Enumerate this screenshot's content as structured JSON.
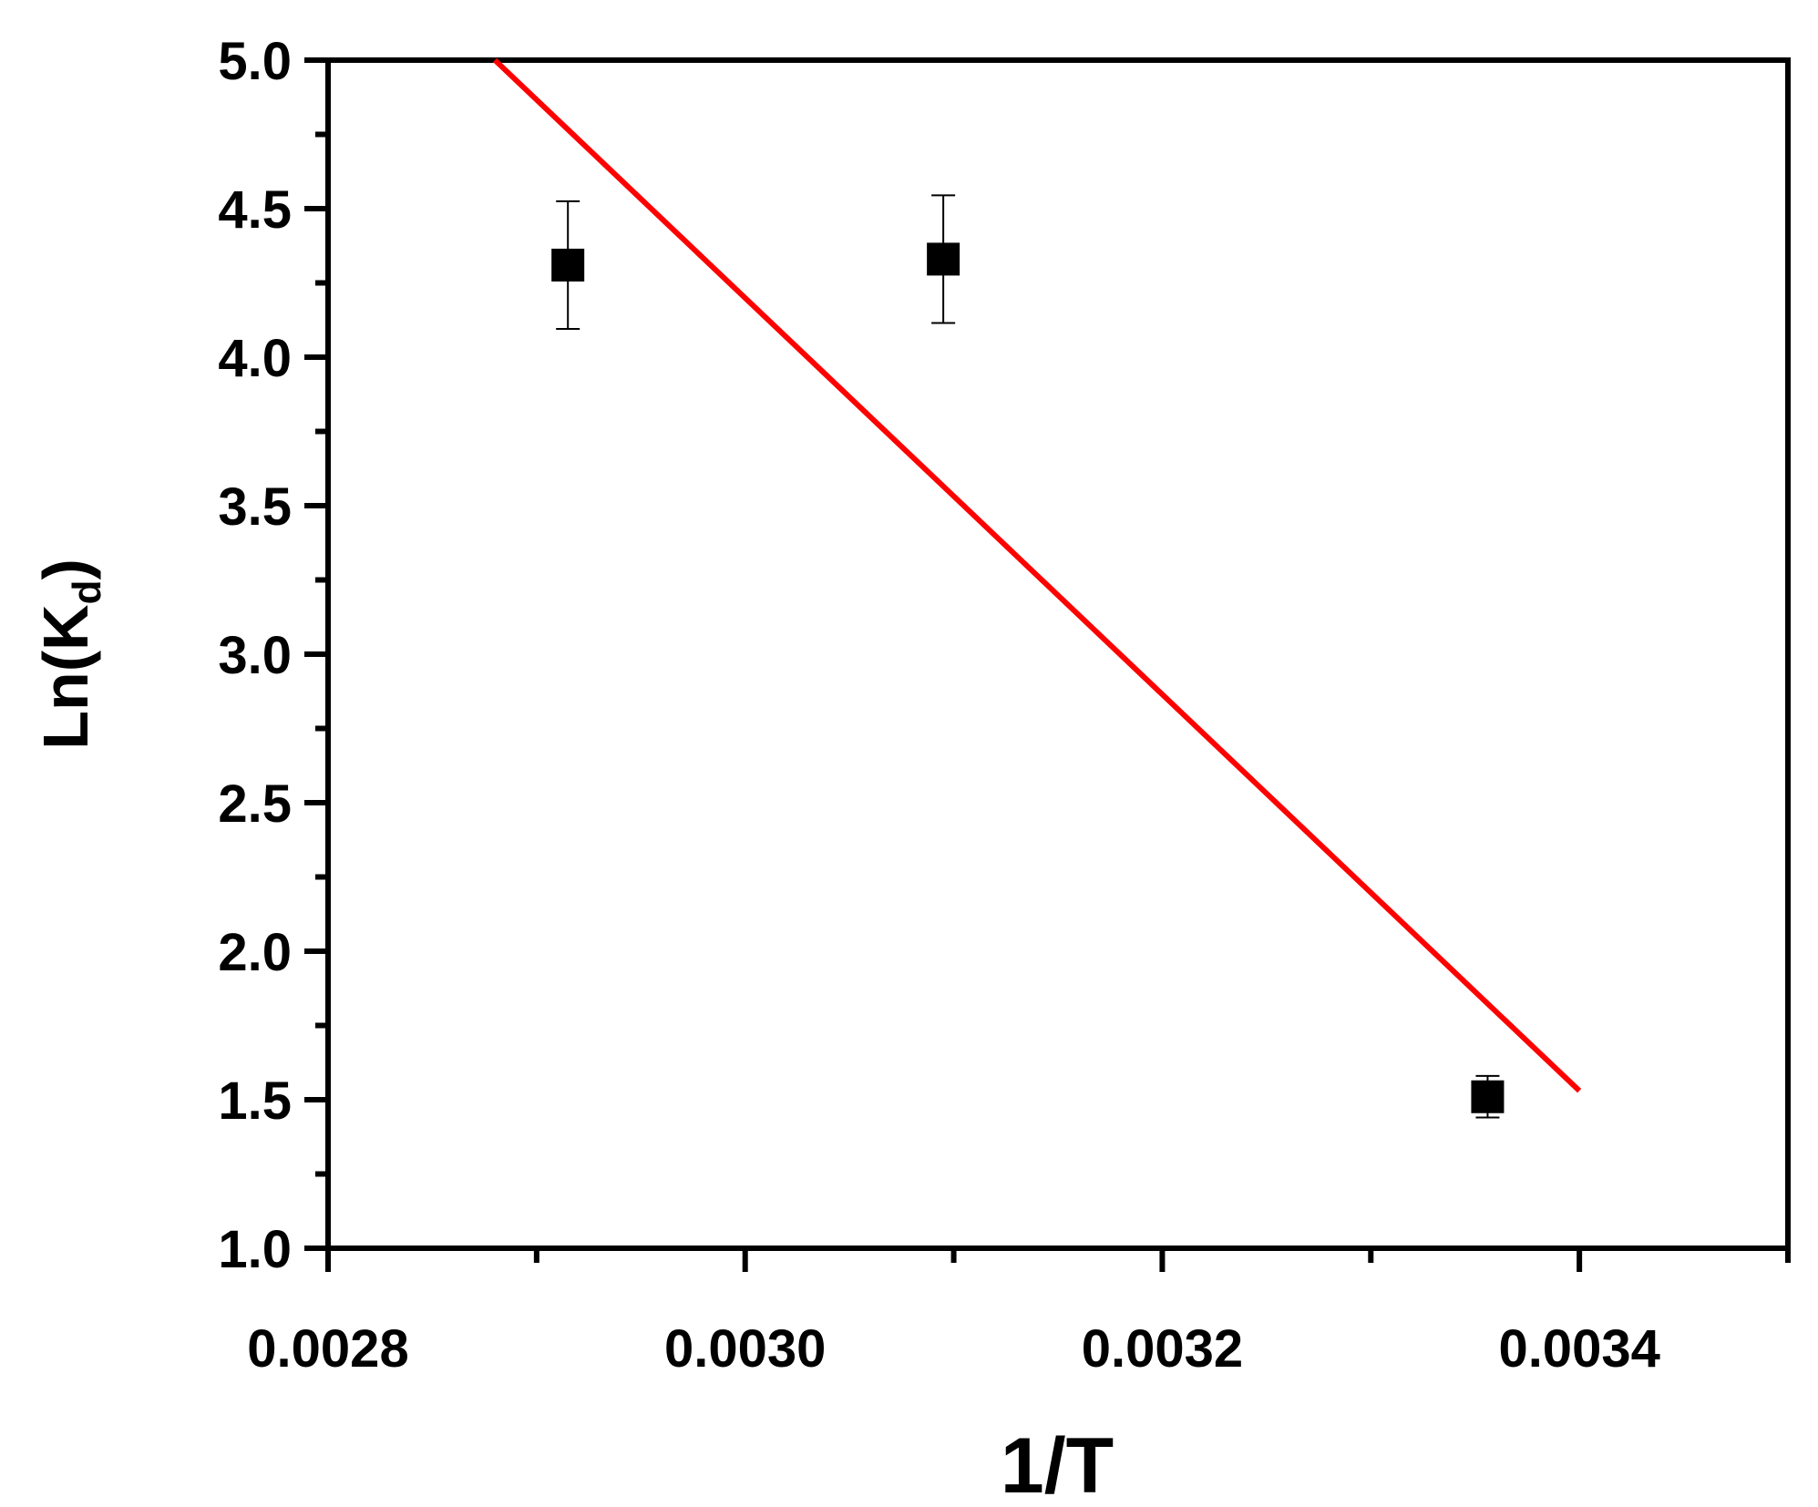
{
  "chart_data": {
    "type": "scatter",
    "title": "",
    "xlabel": "1/T",
    "ylabel_main": "Ln(K",
    "ylabel_sub": "d",
    "ylabel_close": ")",
    "xlim": [
      0.0028,
      0.0035
    ],
    "ylim": [
      1.0,
      5.0
    ],
    "x_ticks": [
      0.0028,
      0.003,
      0.0032,
      0.0034
    ],
    "x_tick_labels": [
      "0.0028",
      "0.0030",
      "0.0032",
      "0.0034"
    ],
    "x_minor_ticks": [
      0.0029,
      0.0031,
      0.0033,
      0.0035
    ],
    "y_ticks": [
      1.0,
      1.5,
      2.0,
      2.5,
      3.0,
      3.5,
      4.0,
      4.5,
      5.0
    ],
    "y_tick_labels": [
      "1.0",
      "1.5",
      "2.0",
      "2.5",
      "3.0",
      "3.5",
      "4.0",
      "4.5",
      "5.0"
    ],
    "y_minor_ticks": [
      1.25,
      1.75,
      2.25,
      2.75,
      3.25,
      3.75,
      4.25,
      4.75
    ],
    "grid": false,
    "series": [
      {
        "type": "scatter",
        "marker": "square",
        "color": "#000000",
        "points": [
          {
            "x": 0.002915,
            "y": 4.31,
            "err": 0.215
          },
          {
            "x": 0.003095,
            "y": 4.33,
            "err": 0.215
          },
          {
            "x": 0.003356,
            "y": 1.51,
            "err": 0.07
          }
        ]
      },
      {
        "type": "line",
        "color": "#ff0000",
        "points": [
          {
            "x": 0.00288,
            "y": 5.0
          },
          {
            "x": 0.0034,
            "y": 1.53
          }
        ]
      }
    ]
  }
}
